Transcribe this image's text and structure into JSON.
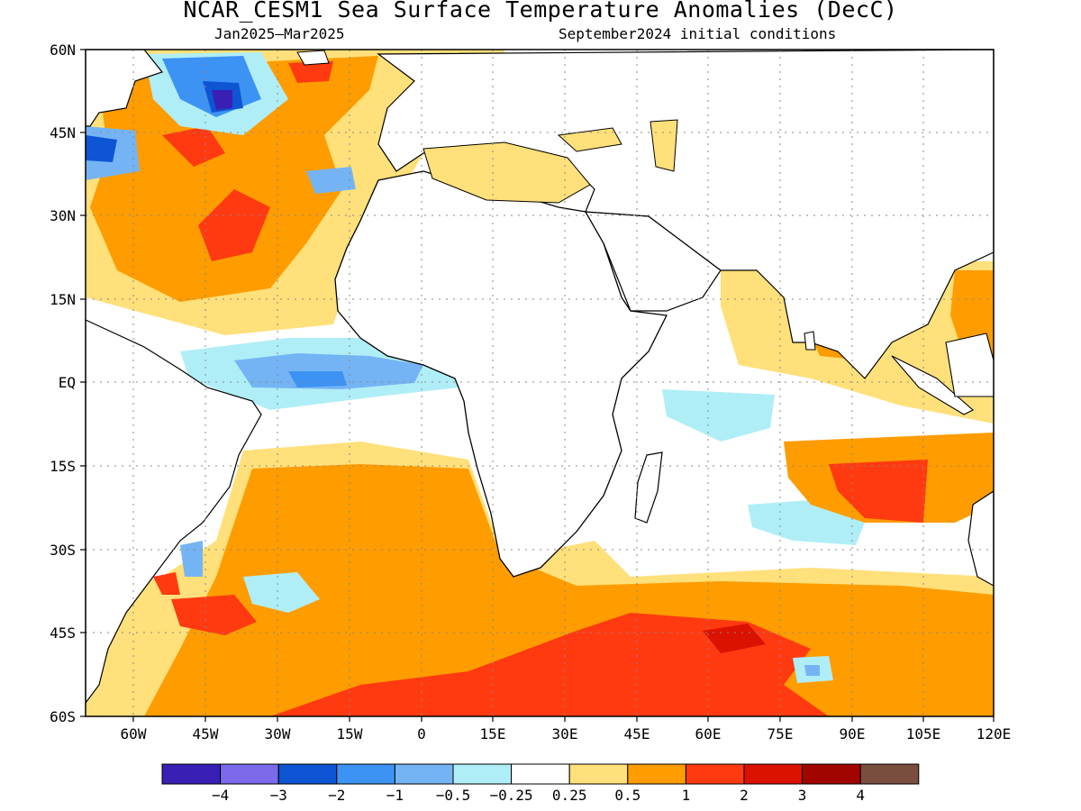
{
  "map": {
    "title": "NCAR_CESM1 Sea Surface Temperature Anomalies (DecC)",
    "period": "Jan2025–Mar2025",
    "init": "September2024 initial conditions",
    "lat_labels": [
      "60N",
      "45N",
      "30N",
      "15N",
      "EQ",
      "15S",
      "30S",
      "45S",
      "60S"
    ],
    "lon_labels": [
      "60W",
      "45W",
      "30W",
      "15W",
      "0",
      "15E",
      "30E",
      "45E",
      "60E",
      "75E",
      "90E",
      "105E",
      "120E"
    ],
    "legend": {
      "colors": [
        "#3a1fb4",
        "#7b6aea",
        "#0d55d2",
        "#3d93f4",
        "#75b4f4",
        "#b0eef7",
        "#ffffff",
        "#ffe07a",
        "#ff9c00",
        "#ff3a10",
        "#db1200",
        "#a20400",
        "#7a4d3f"
      ],
      "labels": [
        "−4",
        "−3",
        "−2",
        "−1",
        "−0.5",
        "−0.25",
        "0.25",
        "0.5",
        "1",
        "2",
        "3",
        "4"
      ]
    }
  }
}
